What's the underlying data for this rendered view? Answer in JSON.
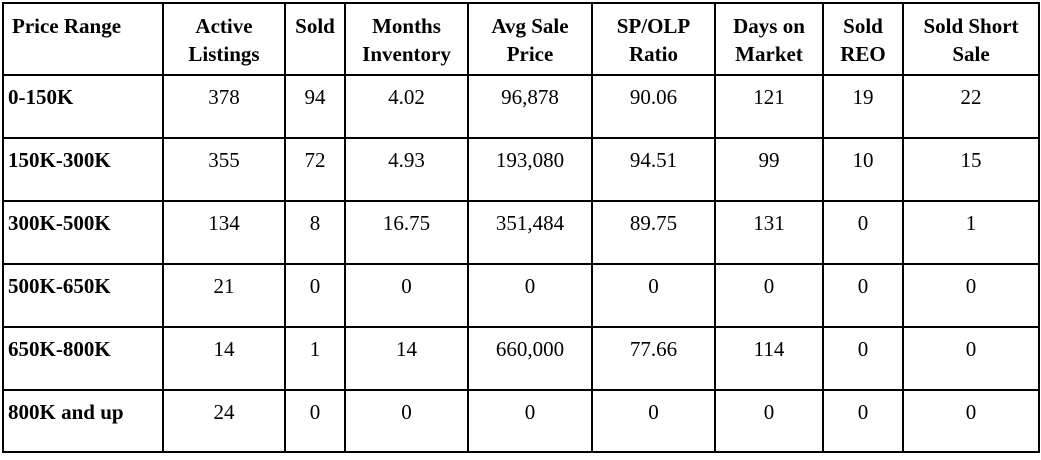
{
  "table": {
    "headers": [
      "Price Range",
      "Active Listings",
      "Sold",
      "Months Inventory",
      "Avg Sale Price",
      "SP/OLP Ratio",
      "Days on Market",
      "Sold REO",
      "Sold Short Sale"
    ],
    "rows": [
      [
        "0-150K",
        "378",
        "94",
        "4.02",
        "96,878",
        "90.06",
        "121",
        "19",
        "22"
      ],
      [
        "150K-300K",
        "355",
        "72",
        "4.93",
        "193,080",
        "94.51",
        "99",
        "10",
        "15"
      ],
      [
        "300K-500K",
        "134",
        "8",
        "16.75",
        "351,484",
        "89.75",
        "131",
        "0",
        "1"
      ],
      [
        "500K-650K",
        "21",
        "0",
        "0",
        "0",
        "0",
        "0",
        "0",
        "0"
      ],
      [
        "650K-800K",
        "14",
        "1",
        "14",
        "660,000",
        "77.66",
        "114",
        "0",
        "0"
      ],
      [
        "800K and up",
        "24",
        "0",
        "0",
        "0",
        "0",
        "0",
        "0",
        "0"
      ]
    ]
  }
}
